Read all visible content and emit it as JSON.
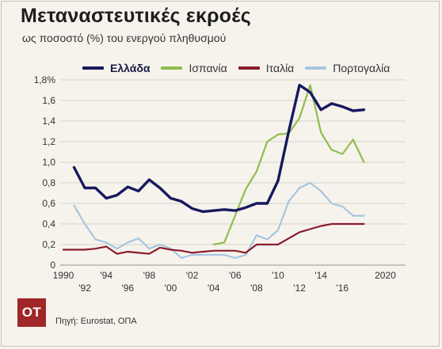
{
  "title": "Μεταναστευτικές εκροές",
  "subtitle": "ως ποσοστό (%) του ενεργού πληθυσμού",
  "source": "Πηγή: Eurostat, ΟΠΑ",
  "logo": "ΟΤ",
  "chart_data": {
    "type": "line",
    "title": "Μεταναστευτικές εκροές",
    "subtitle": "ως ποσοστό (%) του ενεργού πληθυσμού",
    "y_tick_labels": [
      "0",
      "0,2",
      "0,4",
      "0,6",
      "0,8",
      "1,0",
      "1,2",
      "1,4",
      "1,6",
      "1,8%"
    ],
    "y_ticks": [
      0,
      0.2,
      0.4,
      0.6,
      0.8,
      1.0,
      1.2,
      1.4,
      1.6,
      1.8
    ],
    "ylim": [
      0,
      1.8
    ],
    "xlim": [
      1990,
      2021
    ],
    "x_tick_labels_top": [
      "1990",
      "'94",
      "'98",
      "'02",
      "'06",
      "'10",
      "'14",
      "2020"
    ],
    "x_ticks_top": [
      1990,
      1994,
      1998,
      2002,
      2006,
      2010,
      2014,
      2020
    ],
    "x_tick_labels_bottom": [
      "'92",
      "'96",
      "'00",
      "'04",
      "'08",
      "'12",
      "'16"
    ],
    "x_ticks_bottom": [
      1992,
      1996,
      2000,
      2004,
      2008,
      2012,
      2016
    ],
    "grid": "horizontal",
    "legend": "top",
    "series": [
      {
        "name": "Ελλάδα",
        "color": "#17195e",
        "points": [
          [
            1991,
            0.95
          ],
          [
            1992,
            0.75
          ],
          [
            1993,
            0.75
          ],
          [
            1994,
            0.65
          ],
          [
            1995,
            0.68
          ],
          [
            1996,
            0.76
          ],
          [
            1997,
            0.72
          ],
          [
            1998,
            0.83
          ],
          [
            1999,
            0.75
          ],
          [
            2000,
            0.65
          ],
          [
            2001,
            0.62
          ],
          [
            2002,
            0.55
          ],
          [
            2003,
            0.52
          ],
          [
            2005,
            0.54
          ],
          [
            2006,
            0.53
          ],
          [
            2007,
            0.56
          ],
          [
            2008,
            0.6
          ],
          [
            2009,
            0.6
          ],
          [
            2010,
            0.82
          ],
          [
            2011,
            1.3
          ],
          [
            2012,
            1.75
          ],
          [
            2013,
            1.68
          ],
          [
            2014,
            1.51
          ],
          [
            2015,
            1.57
          ],
          [
            2016,
            1.54
          ],
          [
            2017,
            1.5
          ],
          [
            2018,
            1.51
          ]
        ]
      },
      {
        "name": "Ισπανία",
        "color": "#8fbd4e",
        "points": [
          [
            2004,
            0.2
          ],
          [
            2005,
            0.22
          ],
          [
            2006,
            0.48
          ],
          [
            2007,
            0.74
          ],
          [
            2008,
            0.91
          ],
          [
            2009,
            1.2
          ],
          [
            2010,
            1.27
          ],
          [
            2011,
            1.28
          ],
          [
            2012,
            1.43
          ],
          [
            2013,
            1.75
          ],
          [
            2014,
            1.29
          ],
          [
            2015,
            1.12
          ],
          [
            2016,
            1.08
          ],
          [
            2017,
            1.22
          ],
          [
            2018,
            1.0
          ]
        ]
      },
      {
        "name": "Ιταλία",
        "color": "#8a1c2c",
        "points": [
          [
            1990,
            0.15
          ],
          [
            1991,
            0.15
          ],
          [
            1992,
            0.15
          ],
          [
            1993,
            0.16
          ],
          [
            1994,
            0.18
          ],
          [
            1995,
            0.11
          ],
          [
            1996,
            0.13
          ],
          [
            1997,
            0.12
          ],
          [
            1998,
            0.11
          ],
          [
            1999,
            0.17
          ],
          [
            2000,
            0.15
          ],
          [
            2001,
            0.14
          ],
          [
            2002,
            0.12
          ],
          [
            2003,
            0.13
          ],
          [
            2004,
            0.14
          ],
          [
            2005,
            0.14
          ],
          [
            2006,
            0.14
          ],
          [
            2007,
            0.12
          ],
          [
            2008,
            0.2
          ],
          [
            2009,
            0.2
          ],
          [
            2010,
            0.2
          ],
          [
            2011,
            0.26
          ],
          [
            2012,
            0.32
          ],
          [
            2013,
            0.35
          ],
          [
            2014,
            0.38
          ],
          [
            2015,
            0.4
          ],
          [
            2016,
            0.4
          ],
          [
            2017,
            0.4
          ],
          [
            2018,
            0.4
          ]
        ]
      },
      {
        "name": "Πορτογαλία",
        "color": "#a6c6e0",
        "points": [
          [
            1991,
            0.58
          ],
          [
            1992,
            0.4
          ],
          [
            1993,
            0.25
          ],
          [
            1994,
            0.22
          ],
          [
            1995,
            0.16
          ],
          [
            1996,
            0.22
          ],
          [
            1997,
            0.26
          ],
          [
            1998,
            0.16
          ],
          [
            1999,
            0.2
          ],
          [
            2000,
            0.16
          ],
          [
            2001,
            0.07
          ],
          [
            2002,
            0.1
          ],
          [
            2003,
            0.1
          ],
          [
            2004,
            0.1
          ],
          [
            2005,
            0.1
          ],
          [
            2006,
            0.07
          ],
          [
            2007,
            0.1
          ],
          [
            2008,
            0.29
          ],
          [
            2009,
            0.25
          ],
          [
            2010,
            0.34
          ],
          [
            2011,
            0.62
          ],
          [
            2012,
            0.75
          ],
          [
            2013,
            0.8
          ],
          [
            2014,
            0.72
          ],
          [
            2015,
            0.6
          ],
          [
            2016,
            0.57
          ],
          [
            2017,
            0.48
          ],
          [
            2018,
            0.48
          ]
        ]
      }
    ]
  }
}
